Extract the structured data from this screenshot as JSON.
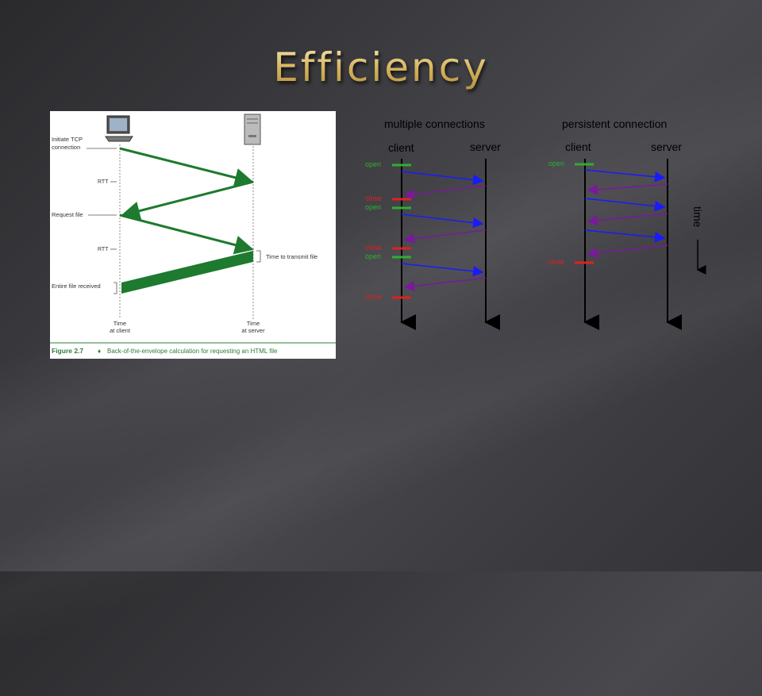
{
  "slide": {
    "title": "Efficiency"
  },
  "figure": {
    "labels": {
      "initiate_tcp_line1": "Initiate TCP",
      "initiate_tcp_line2": "connection",
      "rtt1": "RTT",
      "request_file": "Request file",
      "rtt2": "RTT",
      "time_to_transmit": "Time to transmit file",
      "entire_file": "Entire file received",
      "time_client_line1": "Time",
      "time_client_line2": "at client",
      "time_server_line1": "Time",
      "time_server_line2": "at server"
    },
    "caption_label": "Figure 2.7",
    "caption_bullet": "♦",
    "caption_text": "Back-of-the-envelope calculation for requesting an HTML file",
    "colors": {
      "arrow": "#1e7a2e",
      "caption": "#2e7d3a"
    }
  },
  "multiple": {
    "title": "multiple connections",
    "client": "client",
    "server": "server",
    "markers": [
      {
        "label": "open",
        "color": "#2fae2f"
      },
      {
        "label": "close",
        "color": "#e02020"
      },
      {
        "label": "open",
        "color": "#2fae2f"
      },
      {
        "label": "close",
        "color": "#e02020"
      },
      {
        "label": "open",
        "color": "#2fae2f"
      },
      {
        "label": "close",
        "color": "#e02020"
      }
    ]
  },
  "persistent": {
    "title": "persistent connection",
    "client": "client",
    "server": "server",
    "markers": [
      {
        "label": "open",
        "color": "#2fae2f"
      },
      {
        "label": "close",
        "color": "#e02020"
      }
    ]
  },
  "time_label": "time",
  "colors": {
    "request_arrow": "#1a1aff",
    "response_arrow": "#7a1a9a",
    "open": "#2fae2f",
    "close": "#e02020"
  }
}
